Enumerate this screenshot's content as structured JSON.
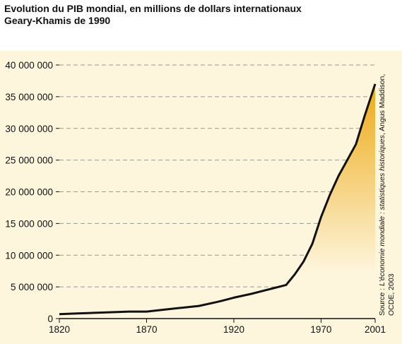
{
  "header": {
    "title_line1": "Evolution du PIB mondial, en millions de dollars internationaux",
    "title_line2": "Geary-Khamis de 1990"
  },
  "source": {
    "prefix": "Source : ",
    "italic": "L'économie mondiale : statistiques historiques",
    "suffix": ", Angus Maddison,",
    "line2": "OCDE, 2003"
  },
  "colors": {
    "background": "#fdf5dc",
    "area_top": "#eeaa16",
    "area_bottom": "#fdf5dc",
    "line": "#111111",
    "gridline": "#9a9a9a"
  },
  "chart_data": {
    "type": "area",
    "title": "Evolution du PIB mondial, en millions de dollars internationaux Geary-Khamis de 1990",
    "xlabel": "",
    "ylabel": "",
    "xlim": [
      1820,
      2001
    ],
    "ylim": [
      0,
      40000000
    ],
    "grid": true,
    "x_ticks": [
      1820,
      1870,
      1920,
      1970,
      2001
    ],
    "x_tick_labels": [
      "1820",
      "1870",
      "1920",
      "1970",
      "2001"
    ],
    "y_ticks": [
      0,
      5000000,
      10000000,
      15000000,
      20000000,
      25000000,
      30000000,
      35000000,
      40000000
    ],
    "y_tick_labels": [
      "0",
      "5 000 000",
      "10 000 000",
      "15 000 000",
      "20 000 000",
      "25 000 000",
      "30 000 000",
      "35 000 000",
      "40 000 000"
    ],
    "series": [
      {
        "x": [
          1820,
          1830,
          1840,
          1850,
          1860,
          1870,
          1880,
          1890,
          1900,
          1910,
          1913,
          1920,
          1930,
          1940,
          1950,
          1955,
          1960,
          1965,
          1970,
          1975,
          1980,
          1985,
          1990,
          1995,
          2001
        ],
        "y": [
          700000,
          800000,
          900000,
          1000000,
          1100000,
          1100000,
          1400000,
          1700000,
          2000000,
          2600000,
          2800000,
          3300000,
          3900000,
          4600000,
          5300000,
          7000000,
          9000000,
          11800000,
          16000000,
          19500000,
          22500000,
          25000000,
          27500000,
          32000000,
          37000000
        ]
      }
    ]
  }
}
